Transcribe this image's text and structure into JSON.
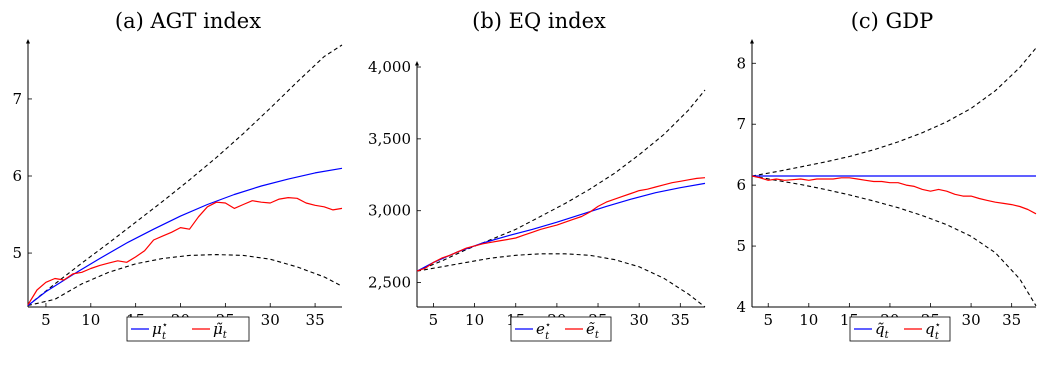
{
  "chart_data": [
    {
      "type": "line",
      "title": "(a) AGT index",
      "xlim": [
        3,
        38
      ],
      "ylim": [
        4.3,
        7.7
      ],
      "xticks": [
        5,
        10,
        15,
        20,
        25,
        30,
        35
      ],
      "yticks": [
        5,
        6,
        7
      ],
      "ytick_labels": [
        "5",
        "6",
        "7"
      ],
      "grid": false,
      "legend_position": "bottom-center",
      "legend": [
        {
          "label": "μ⋆t",
          "main": "μ",
          "sup": "⋆",
          "sub": "t",
          "series": "mu_star"
        },
        {
          "label": "μ̃t",
          "main": "μ̃",
          "sup": "",
          "sub": "t",
          "series": "mu_tilde"
        }
      ],
      "series": [
        {
          "id": "mu_star",
          "color": "#0000ff",
          "dash": false,
          "x": [
            3,
            5,
            8,
            11,
            14,
            17,
            20,
            23,
            26,
            29,
            32,
            35,
            38
          ],
          "y": [
            4.32,
            4.5,
            4.72,
            4.93,
            5.13,
            5.31,
            5.48,
            5.63,
            5.76,
            5.87,
            5.96,
            6.04,
            6.1
          ]
        },
        {
          "id": "mu_tilde",
          "color": "#ff0000",
          "dash": false,
          "x": [
            3,
            4,
            5,
            6,
            7,
            8,
            9,
            10,
            11,
            12,
            13,
            14,
            15,
            16,
            17,
            18,
            19,
            20,
            21,
            22,
            23,
            24,
            25,
            26,
            27,
            28,
            29,
            30,
            31,
            32,
            33,
            34,
            35,
            36,
            37,
            38
          ],
          "y": [
            4.33,
            4.52,
            4.62,
            4.67,
            4.65,
            4.73,
            4.75,
            4.8,
            4.84,
            4.87,
            4.9,
            4.88,
            4.95,
            5.03,
            5.17,
            5.22,
            5.27,
            5.33,
            5.31,
            5.47,
            5.6,
            5.66,
            5.65,
            5.58,
            5.63,
            5.68,
            5.66,
            5.65,
            5.7,
            5.72,
            5.71,
            5.65,
            5.62,
            5.6,
            5.56,
            5.58
          ]
        },
        {
          "id": "upper",
          "color": "#000000",
          "dash": true,
          "x": [
            3,
            6,
            9,
            12,
            15,
            18,
            21,
            24,
            27,
            30,
            33,
            36,
            38
          ],
          "y": [
            4.32,
            4.6,
            4.87,
            5.13,
            5.4,
            5.67,
            5.95,
            6.24,
            6.55,
            6.88,
            7.22,
            7.55,
            7.7
          ]
        },
        {
          "id": "lower",
          "color": "#000000",
          "dash": true,
          "x": [
            3,
            6,
            9,
            12,
            15,
            18,
            21,
            24,
            27,
            30,
            33,
            36,
            38
          ],
          "y": [
            4.32,
            4.4,
            4.6,
            4.75,
            4.86,
            4.93,
            4.97,
            4.98,
            4.97,
            4.92,
            4.82,
            4.69,
            4.57
          ]
        }
      ]
    },
    {
      "type": "line",
      "title": "(b) EQ index",
      "xlim": [
        3,
        38
      ],
      "ylim": [
        2330,
        4000
      ],
      "xticks": [
        5,
        10,
        15,
        20,
        25,
        30,
        35
      ],
      "yticks": [
        2500,
        3000,
        3500,
        4000
      ],
      "ytick_labels": [
        "2,500",
        "3,000",
        "3,500",
        "4,000"
      ],
      "grid": false,
      "legend_position": "bottom-center",
      "legend": [
        {
          "label": "e⋆t",
          "main": "e",
          "sup": "⋆",
          "sub": "t",
          "series": "e_star"
        },
        {
          "label": "ẽt",
          "main": "ẽ",
          "sup": "",
          "sub": "t",
          "series": "e_tilde"
        }
      ],
      "series": [
        {
          "id": "e_star",
          "color": "#0000ff",
          "dash": false,
          "x": [
            3,
            5,
            8,
            11,
            14,
            17,
            20,
            23,
            26,
            29,
            32,
            35,
            38
          ],
          "y": [
            2580,
            2640,
            2715,
            2775,
            2825,
            2870,
            2920,
            2975,
            3030,
            3080,
            3125,
            3160,
            3190
          ]
        },
        {
          "id": "e_tilde",
          "color": "#ff0000",
          "dash": false,
          "x": [
            3,
            4,
            5,
            6,
            7,
            8,
            9,
            10,
            11,
            12,
            13,
            14,
            15,
            16,
            17,
            18,
            19,
            20,
            21,
            22,
            23,
            24,
            25,
            26,
            27,
            28,
            29,
            30,
            31,
            32,
            33,
            34,
            35,
            36,
            37,
            38
          ],
          "y": [
            2580,
            2600,
            2640,
            2670,
            2690,
            2715,
            2740,
            2755,
            2770,
            2780,
            2790,
            2800,
            2810,
            2830,
            2850,
            2870,
            2885,
            2900,
            2920,
            2940,
            2960,
            2990,
            3030,
            3060,
            3080,
            3100,
            3120,
            3140,
            3150,
            3165,
            3180,
            3195,
            3205,
            3215,
            3225,
            3230
          ]
        },
        {
          "id": "upper",
          "color": "#000000",
          "dash": true,
          "x": [
            3,
            6,
            9,
            12,
            15,
            18,
            21,
            24,
            27,
            30,
            33,
            36,
            38
          ],
          "y": [
            2580,
            2650,
            2730,
            2800,
            2870,
            2960,
            3050,
            3150,
            3260,
            3390,
            3530,
            3700,
            3840
          ]
        },
        {
          "id": "lower",
          "color": "#000000",
          "dash": true,
          "x": [
            3,
            6,
            9,
            12,
            15,
            18,
            21,
            24,
            27,
            30,
            33,
            36,
            38
          ],
          "y": [
            2580,
            2610,
            2640,
            2670,
            2690,
            2700,
            2700,
            2690,
            2660,
            2610,
            2530,
            2420,
            2330
          ]
        }
      ]
    },
    {
      "type": "line",
      "title": "(c) GDP",
      "xlim": [
        3,
        38
      ],
      "ylim": [
        4,
        8.3
      ],
      "xticks": [
        5,
        10,
        15,
        20,
        25,
        30,
        35
      ],
      "yticks": [
        4,
        5,
        6,
        7,
        8
      ],
      "ytick_labels": [
        "4",
        "5",
        "6",
        "7",
        "8"
      ],
      "grid": false,
      "legend_position": "bottom-center",
      "legend": [
        {
          "label": "q̃t",
          "main": "q̃",
          "sup": "",
          "sub": "t",
          "series": "q_tilde"
        },
        {
          "label": "q⋆t",
          "main": "q",
          "sup": "⋆",
          "sub": "t",
          "series": "q_star"
        }
      ],
      "series": [
        {
          "id": "q_tilde",
          "color": "#0000ff",
          "dash": false,
          "x": [
            3,
            38
          ],
          "y": [
            6.15,
            6.15
          ]
        },
        {
          "id": "q_star",
          "color": "#ff0000",
          "dash": false,
          "x": [
            3,
            4,
            5,
            6,
            7,
            8,
            9,
            10,
            11,
            12,
            13,
            14,
            15,
            16,
            17,
            18,
            19,
            20,
            21,
            22,
            23,
            24,
            25,
            26,
            27,
            28,
            29,
            30,
            31,
            32,
            33,
            34,
            35,
            36,
            37,
            38
          ],
          "y": [
            6.15,
            6.12,
            6.08,
            6.1,
            6.08,
            6.09,
            6.1,
            6.08,
            6.1,
            6.1,
            6.1,
            6.12,
            6.12,
            6.1,
            6.08,
            6.06,
            6.06,
            6.04,
            6.04,
            6.0,
            5.98,
            5.93,
            5.9,
            5.93,
            5.9,
            5.85,
            5.82,
            5.82,
            5.78,
            5.75,
            5.72,
            5.7,
            5.68,
            5.65,
            5.6,
            5.53
          ]
        },
        {
          "id": "upper",
          "color": "#000000",
          "dash": true,
          "x": [
            3,
            6,
            9,
            12,
            15,
            18,
            21,
            24,
            27,
            30,
            33,
            36,
            38
          ],
          "y": [
            6.15,
            6.22,
            6.3,
            6.38,
            6.47,
            6.58,
            6.71,
            6.86,
            7.04,
            7.26,
            7.55,
            7.93,
            8.25
          ]
        },
        {
          "id": "lower",
          "color": "#000000",
          "dash": true,
          "x": [
            3,
            6,
            9,
            12,
            15,
            18,
            21,
            24,
            27,
            30,
            33,
            36,
            38
          ],
          "y": [
            6.15,
            6.08,
            6.01,
            5.93,
            5.84,
            5.74,
            5.63,
            5.5,
            5.35,
            5.16,
            4.89,
            4.46,
            4.02
          ]
        }
      ]
    }
  ]
}
